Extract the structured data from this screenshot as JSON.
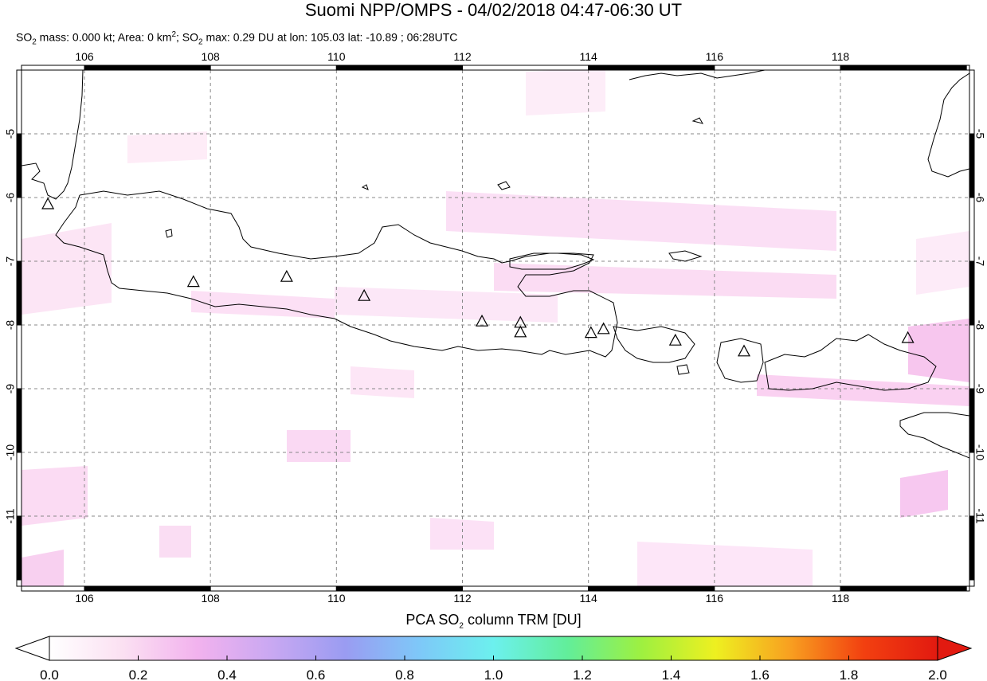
{
  "title": "Suomi NPP/OMPS - 04/02/2018 04:47-06:30 UT",
  "subtitle": {
    "so2_mass_prefix": "SO",
    "so2_mass_text": " mass: 0.000 kt; Area: 0 km",
    "area_sup": "2",
    "so2_max_prefix": "; SO",
    "so2_max_text": " max: 0.29 DU at lon: 105.03 lat: -10.89 ; 06:28UTC",
    "sub_2": "2"
  },
  "map": {
    "lon_range": [
      105,
      120
    ],
    "lat_range": [
      -12.0,
      -4.0
    ],
    "lon_ticks": [
      "106",
      "108",
      "110",
      "112",
      "114",
      "116",
      "118"
    ],
    "lat_ticks": [
      "-5",
      "-6",
      "-7",
      "-8",
      "-9",
      "-10",
      "-11"
    ],
    "volcanoes": [
      {
        "lon": 105.42,
        "lat": -6.1
      },
      {
        "lon": 107.73,
        "lat": -7.32
      },
      {
        "lon": 109.21,
        "lat": -7.24
      },
      {
        "lon": 110.44,
        "lat": -7.54
      },
      {
        "lon": 112.31,
        "lat": -7.94
      },
      {
        "lon": 112.92,
        "lat": -7.96
      },
      {
        "lon": 112.92,
        "lat": -8.11
      },
      {
        "lon": 114.04,
        "lat": -8.12
      },
      {
        "lon": 114.24,
        "lat": -8.06
      },
      {
        "lon": 115.38,
        "lat": -8.24
      },
      {
        "lon": 116.47,
        "lat": -8.41
      },
      {
        "lon": 119.07,
        "lat": -8.2
      }
    ],
    "colors": {
      "coast": "#000000",
      "grid": "#888888",
      "so2_tint": "#f8c8f0"
    }
  },
  "colorbar": {
    "title_prefix": "PCA SO",
    "title_sub": "2",
    "title_suffix": " column TRM [DU]",
    "min": 0.0,
    "max": 2.0,
    "tick_labels": [
      "0.0",
      "0.2",
      "0.4",
      "0.6",
      "0.8",
      "1.0",
      "1.2",
      "1.4",
      "1.6",
      "1.8",
      "2.0"
    ],
    "colors": [
      "#ffffff",
      "#fbe0f2",
      "#f2b2ee",
      "#c9a8f2",
      "#9a9cf2",
      "#7ec8f8",
      "#6cf0ee",
      "#62ee9a",
      "#9ef040",
      "#eef020",
      "#f8a020",
      "#f24010",
      "#e21a10"
    ]
  }
}
